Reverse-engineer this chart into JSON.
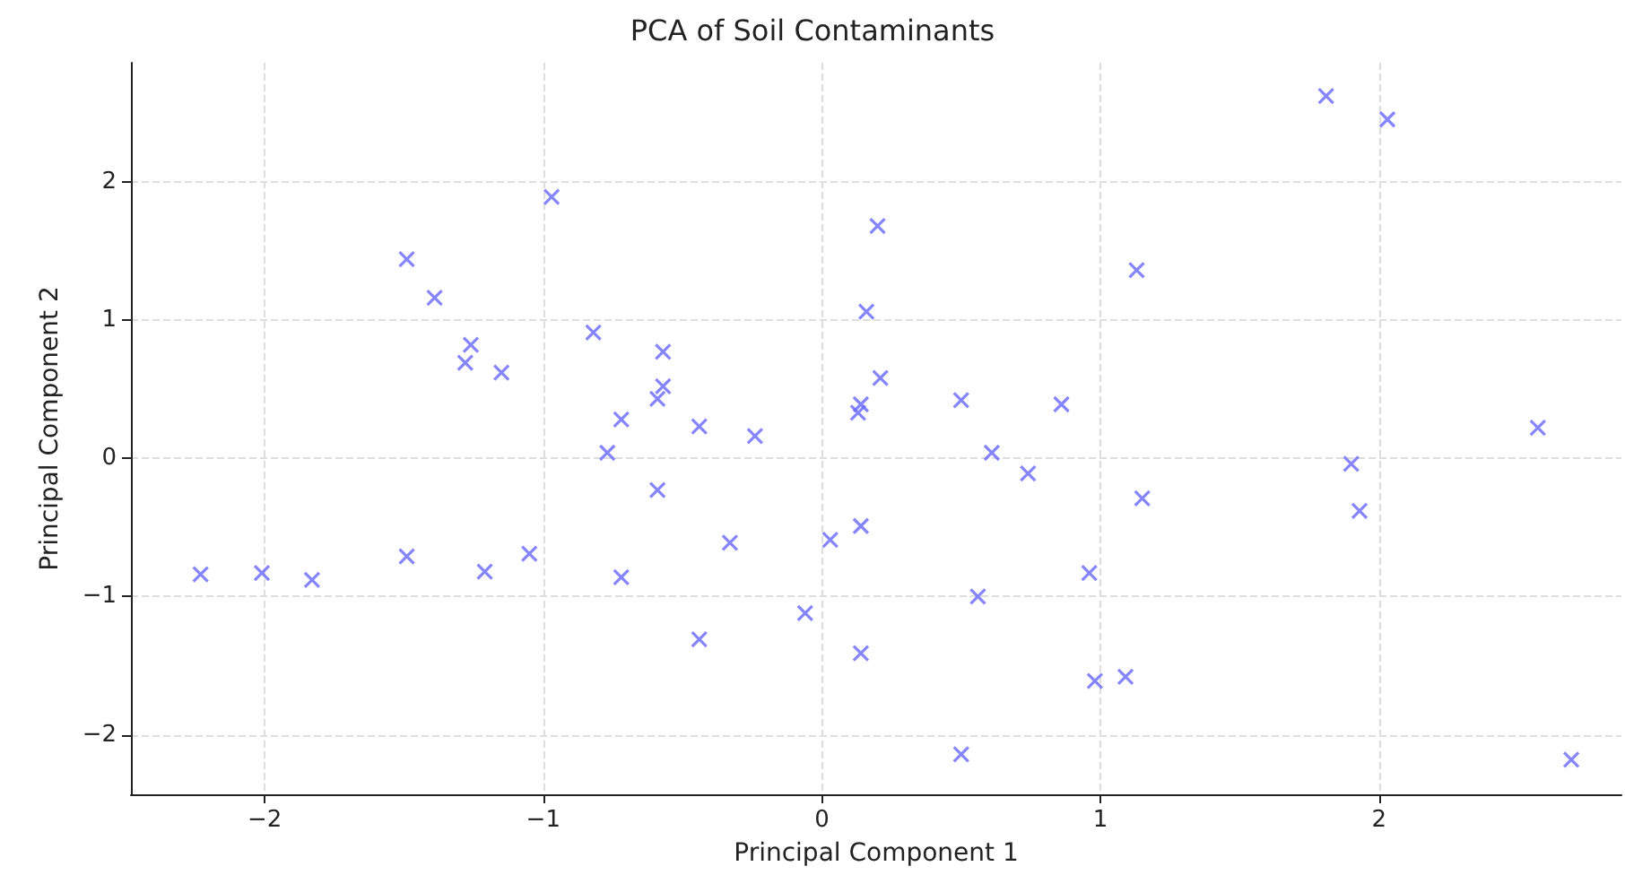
{
  "chart_data": {
    "type": "scatter",
    "title": "PCA of Soil Contaminants",
    "xlabel": "Principal Component 1",
    "ylabel": "Principal Component 2",
    "x": [
      -2.23,
      -2.01,
      -1.83,
      -1.49,
      -1.49,
      -1.39,
      -1.26,
      -1.28,
      -1.21,
      -1.15,
      -1.05,
      -0.97,
      -0.82,
      -0.72,
      -0.77,
      -0.72,
      -0.59,
      -0.57,
      -0.57,
      -0.59,
      -0.44,
      -0.44,
      -0.33,
      -0.24,
      -0.06,
      0.03,
      0.14,
      0.13,
      0.14,
      0.16,
      0.2,
      0.21,
      0.14,
      0.5,
      0.56,
      0.61,
      0.5,
      0.74,
      0.86,
      0.96,
      0.98,
      1.09,
      1.13,
      1.15,
      1.81,
      1.9,
      1.93,
      2.03,
      2.57,
      2.69
    ],
    "values": [
      -0.84,
      -0.83,
      -0.88,
      1.44,
      -0.71,
      1.16,
      0.82,
      0.69,
      -0.82,
      0.62,
      -0.69,
      1.89,
      0.91,
      0.28,
      0.04,
      -0.86,
      -0.23,
      0.77,
      0.52,
      0.43,
      0.23,
      -1.31,
      -0.61,
      0.16,
      -1.12,
      -0.59,
      -0.49,
      0.33,
      0.39,
      1.06,
      1.68,
      0.58,
      -1.41,
      0.42,
      -1,
      0.04,
      -2.14,
      -0.11,
      0.39,
      -0.83,
      -1.61,
      -1.58,
      1.36,
      -0.29,
      2.62,
      -0.04,
      -0.38,
      2.45,
      0.22,
      -2.18
    ],
    "color": "#6666ff",
    "marker": "cross",
    "grid": true,
    "xlim": [
      -2.48,
      2.87
    ],
    "ylim": [
      -2.43,
      2.86
    ],
    "xticks": [
      -2,
      -1,
      0,
      1,
      2
    ],
    "yticks": [
      -2,
      -1,
      0,
      1,
      2
    ]
  }
}
